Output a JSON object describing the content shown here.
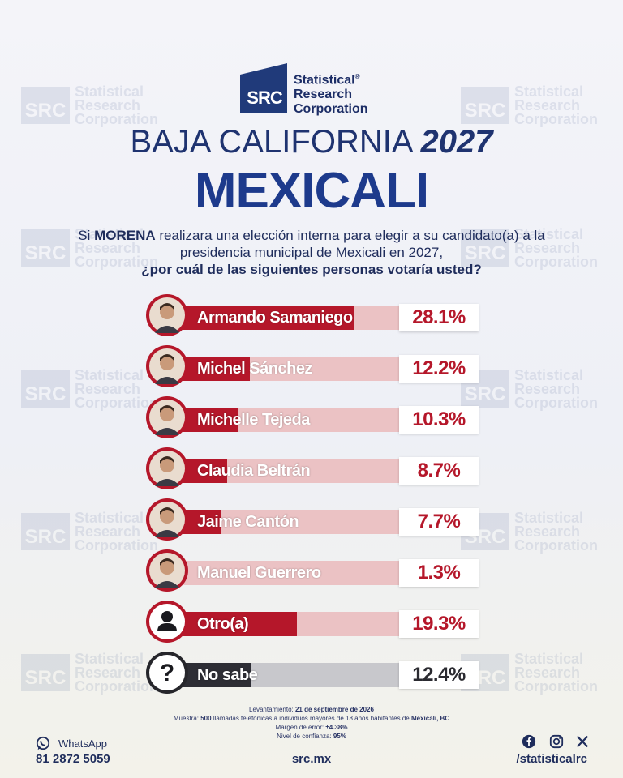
{
  "brand": {
    "logo_letters": "SRC",
    "logo_name_line1": "Statistical",
    "logo_name_line2": "Research",
    "logo_name_line3": "Corporation",
    "registered_mark": "®"
  },
  "header": {
    "subtitle_region": "BAJA CALIFORNIA",
    "subtitle_year": "2027",
    "title": "MEXICALI"
  },
  "question": {
    "part1": "Si ",
    "party": "MORENA",
    "part2": " realizara una elección interna para elegir a su candidato(a) a la presidencia municipal de Mexicali en 2027,",
    "part3": "¿por cuál de las siguientes personas votaría usted?"
  },
  "chart_data": {
    "type": "bar",
    "orientation": "horizontal",
    "categories": [
      "Armando Samaniego",
      "Michel Sánchez",
      "Michelle Tejeda",
      "Claudia Beltrán",
      "Jaime Cantón",
      "Manuel Guerrero",
      "Otro(a)",
      "No sabe"
    ],
    "values": [
      28.1,
      12.2,
      10.3,
      8.7,
      7.7,
      1.3,
      19.3,
      12.4
    ],
    "value_labels": [
      "28.1%",
      "12.2%",
      "10.3%",
      "8.7%",
      "7.7%",
      "1.3%",
      "19.3%",
      "12.4%"
    ],
    "avatars": [
      "person-photo",
      "person-photo",
      "person-photo",
      "person-photo",
      "person-photo",
      "person-photo",
      "person-icon",
      "question-icon"
    ],
    "xlim": [
      0,
      35
    ],
    "bar_color": "#b5172a",
    "bar_track_color": "#ebc2c4",
    "neutral_bar_color": "#2e2e35",
    "neutral_track_color": "#c8c8cc"
  },
  "footnotes": {
    "l1_label": "Levantamiento: ",
    "l1_value": "21 de septiembre de 2026",
    "l2_label": "Muestra: ",
    "l2_value": "500",
    "l2_text": " llamadas telefónicas a individuos mayores de 18 años habitantes de ",
    "l2_place": "Mexicali, BC",
    "l3_label": "Margen de error: ",
    "l3_value": "±4.38%",
    "l4_label": "Nivel de confianza: ",
    "l4_value": "95%"
  },
  "footer": {
    "whatsapp_label": "WhatsApp",
    "whatsapp_phone": "81 2872 5059",
    "website": "src.mx",
    "social_handle": "/statisticalrc",
    "social_icons": [
      "facebook-icon",
      "instagram-icon",
      "x-icon"
    ]
  },
  "colors": {
    "navy": "#1d3a8c",
    "red": "#b5172a"
  }
}
